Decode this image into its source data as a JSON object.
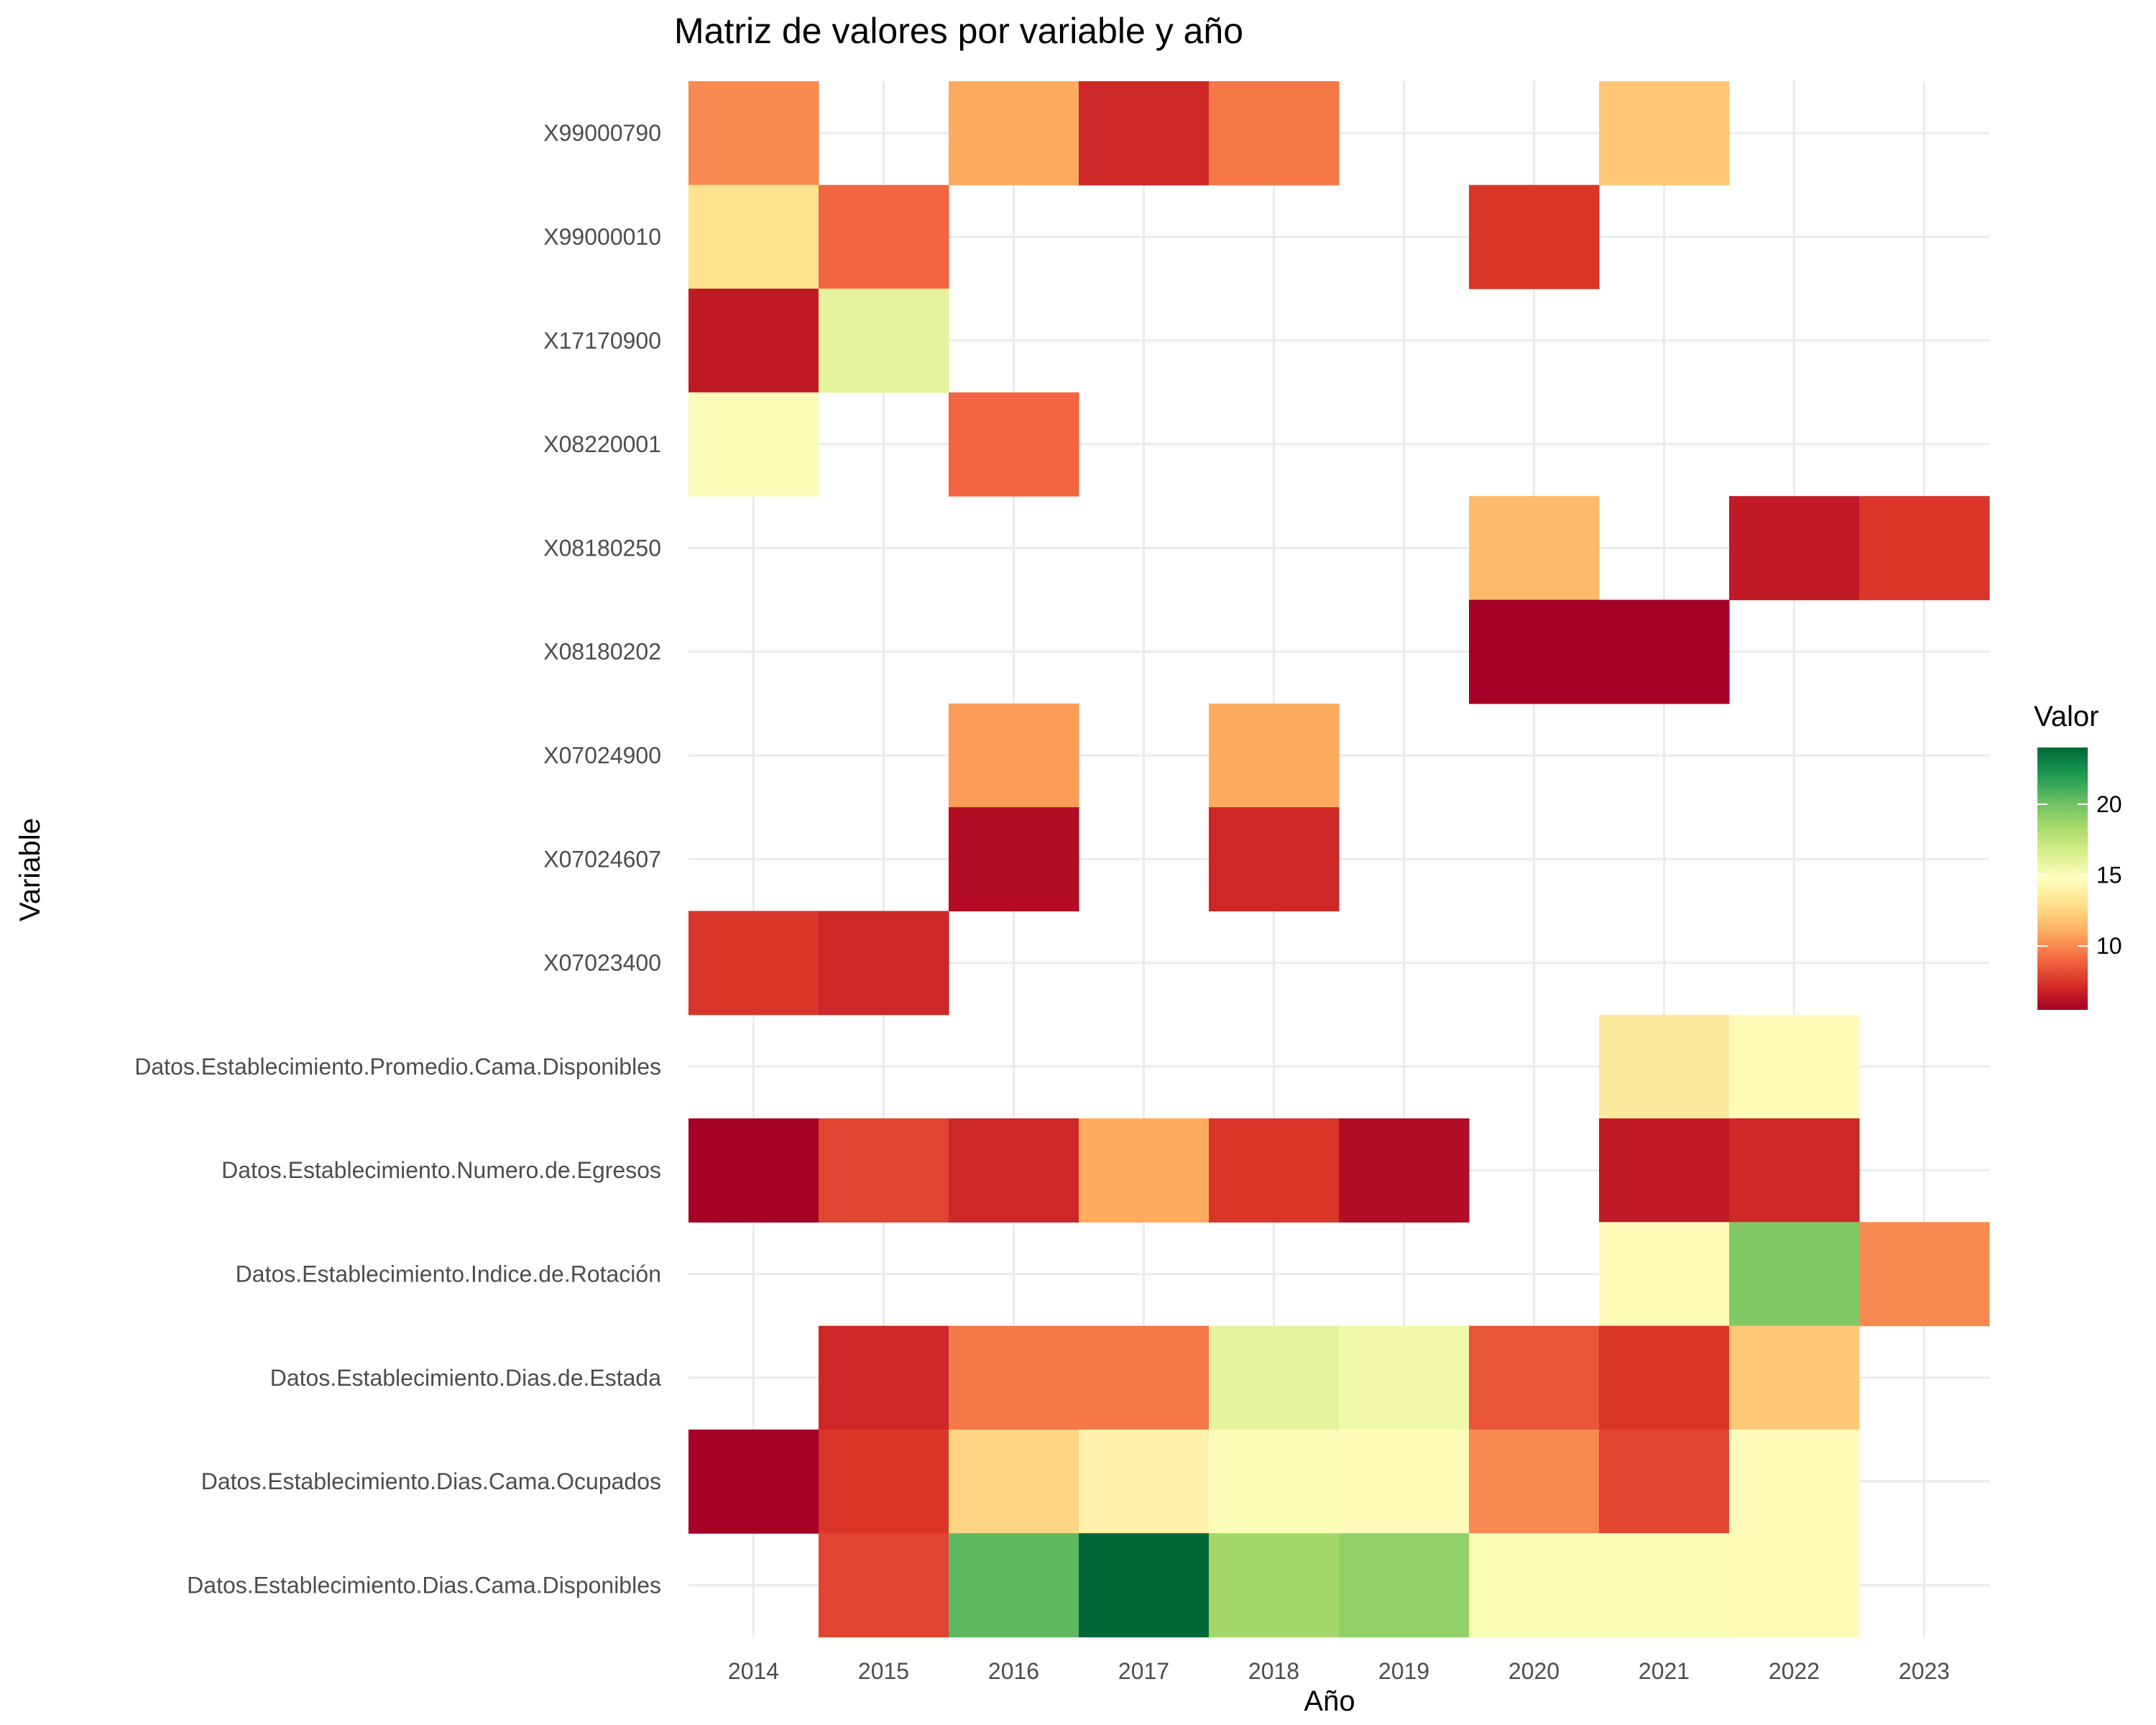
{
  "chart_data": {
    "type": "heatmap",
    "title": "Matriz de valores por variable y año",
    "xlabel": "Año",
    "ylabel": "Variable",
    "x": [
      "2014",
      "2015",
      "2016",
      "2017",
      "2018",
      "2019",
      "2020",
      "2021",
      "2022",
      "2023"
    ],
    "y": [
      "X99000790",
      "X99000010",
      "X17170900",
      "X08220001",
      "X08180250",
      "X08180202",
      "X07024900",
      "X07024607",
      "X07023400",
      "Datos.Establecimiento.Promedio.Cama.Disponibles",
      "Datos.Establecimiento.Numero.de.Egresos",
      "Datos.Establecimiento.Indice.de.Rotación",
      "Datos.Establecimiento.Dias.de.Estada",
      "Datos.Establecimiento.Dias.Cama.Ocupados",
      "Datos.Establecimiento.Dias.Cama.Disponibles"
    ],
    "values": [
      [
        10,
        null,
        11,
        7,
        9.5,
        null,
        null,
        12,
        null,
        null
      ],
      [
        13,
        9,
        null,
        null,
        null,
        null,
        7.5,
        null,
        null,
        null
      ],
      [
        6.5,
        16,
        null,
        null,
        null,
        null,
        null,
        null,
        null,
        null
      ],
      [
        15,
        null,
        9,
        null,
        null,
        null,
        null,
        null,
        null,
        null
      ],
      [
        null,
        null,
        null,
        null,
        null,
        null,
        11.5,
        null,
        6.5,
        7.5
      ],
      [
        null,
        null,
        null,
        null,
        null,
        null,
        5.5,
        5.5,
        null,
        null
      ],
      [
        null,
        null,
        10.5,
        null,
        11,
        null,
        null,
        null,
        null,
        null
      ],
      [
        null,
        null,
        6,
        null,
        7,
        null,
        null,
        null,
        null,
        null
      ],
      [
        7.5,
        7,
        null,
        null,
        null,
        null,
        null,
        null,
        null,
        null
      ],
      [
        null,
        null,
        null,
        null,
        null,
        null,
        null,
        13.5,
        14.5,
        null
      ],
      [
        5.5,
        8,
        7,
        11,
        7.5,
        6,
        null,
        6.5,
        7,
        null
      ],
      [
        null,
        null,
        null,
        null,
        null,
        null,
        null,
        14.5,
        19.5,
        10
      ],
      [
        null,
        7,
        9.5,
        9.5,
        16,
        15.5,
        8.5,
        7.5,
        12,
        null
      ],
      [
        5.5,
        7.5,
        12.5,
        14,
        15,
        14.5,
        10,
        8,
        14.5,
        null
      ],
      [
        null,
        8,
        20.5,
        24,
        18.5,
        19,
        15,
        15,
        14.5,
        null
      ]
    ],
    "colorbar": {
      "title": "Valor",
      "min": 5.5,
      "max": 24,
      "ticks": [
        10,
        15,
        20
      ],
      "colors": [
        "#a50026",
        "#d73027",
        "#f46d43",
        "#fdae61",
        "#fee08b",
        "#ffffbf",
        "#d9ef8b",
        "#a6d96a",
        "#66bd63",
        "#1a9850",
        "#006837"
      ]
    },
    "grid": true,
    "legend_position": "right"
  }
}
